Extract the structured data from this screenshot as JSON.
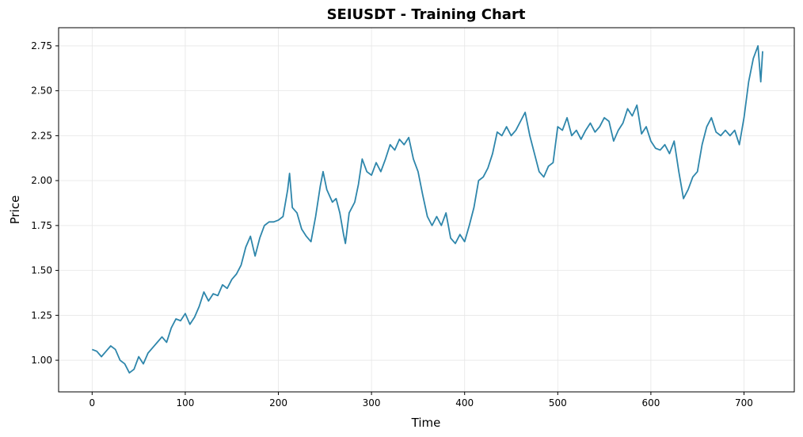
{
  "chart_data": {
    "type": "line",
    "title": "SEIUSDT - Training Chart",
    "xlabel": "Time",
    "ylabel": "Price",
    "color": "#2e86ab",
    "grid": true,
    "xlim": [
      -36,
      754
    ],
    "ylim": [
      0.824,
      2.851
    ],
    "xticks": [
      0,
      100,
      200,
      300,
      400,
      500,
      600,
      700
    ],
    "yticks": [
      {
        "value": 1,
        "label": "1.00"
      },
      1.25,
      {
        "value": 1.5,
        "label": "1.50"
      },
      1.75,
      {
        "value": 2,
        "label": "2.00"
      },
      2.25,
      {
        "value": 2.5,
        "label": "2.50"
      },
      2.75
    ],
    "x": [
      0,
      5,
      10,
      15,
      20,
      25,
      30,
      35,
      40,
      45,
      50,
      55,
      60,
      65,
      70,
      75,
      80,
      85,
      90,
      95,
      100,
      105,
      110,
      115,
      120,
      125,
      130,
      135,
      140,
      145,
      150,
      155,
      160,
      165,
      170,
      175,
      180,
      185,
      190,
      195,
      200,
      205,
      210,
      212,
      215,
      220,
      225,
      230,
      235,
      240,
      245,
      248,
      252,
      258,
      262,
      266,
      270,
      272,
      276,
      282,
      286,
      290,
      295,
      300,
      305,
      310,
      315,
      320,
      325,
      330,
      335,
      340,
      345,
      350,
      355,
      360,
      365,
      370,
      375,
      380,
      385,
      390,
      395,
      400,
      405,
      410,
      415,
      420,
      425,
      430,
      435,
      440,
      445,
      450,
      455,
      460,
      465,
      470,
      475,
      480,
      485,
      490,
      495,
      500,
      505,
      510,
      515,
      520,
      525,
      530,
      535,
      540,
      545,
      550,
      555,
      560,
      565,
      570,
      575,
      580,
      585,
      590,
      595,
      600,
      605,
      610,
      615,
      620,
      625,
      630,
      635,
      640,
      645,
      650,
      655,
      660,
      665,
      670,
      675,
      680,
      685,
      690,
      695,
      700,
      705,
      710,
      715,
      718,
      720
    ],
    "values": [
      1.06,
      1.05,
      1.02,
      1.05,
      1.08,
      1.06,
      1.0,
      0.98,
      0.93,
      0.95,
      1.02,
      0.98,
      1.04,
      1.07,
      1.1,
      1.13,
      1.1,
      1.18,
      1.23,
      1.22,
      1.26,
      1.2,
      1.24,
      1.3,
      1.38,
      1.33,
      1.37,
      1.36,
      1.42,
      1.4,
      1.45,
      1.48,
      1.53,
      1.63,
      1.69,
      1.58,
      1.68,
      1.75,
      1.77,
      1.77,
      1.78,
      1.8,
      1.95,
      2.04,
      1.85,
      1.82,
      1.73,
      1.69,
      1.66,
      1.8,
      1.97,
      2.05,
      1.95,
      1.88,
      1.9,
      1.82,
      1.7,
      1.65,
      1.82,
      1.88,
      1.98,
      2.12,
      2.05,
      2.03,
      2.1,
      2.05,
      2.12,
      2.2,
      2.17,
      2.23,
      2.2,
      2.24,
      2.12,
      2.05,
      1.92,
      1.8,
      1.75,
      1.8,
      1.75,
      1.82,
      1.68,
      1.65,
      1.7,
      1.66,
      1.75,
      1.85,
      2.0,
      2.02,
      2.07,
      2.15,
      2.27,
      2.25,
      2.3,
      2.25,
      2.28,
      2.33,
      2.38,
      2.25,
      2.15,
      2.05,
      2.02,
      2.08,
      2.1,
      2.3,
      2.28,
      2.35,
      2.25,
      2.28,
      2.23,
      2.28,
      2.32,
      2.27,
      2.3,
      2.35,
      2.33,
      2.22,
      2.28,
      2.32,
      2.4,
      2.36,
      2.42,
      2.26,
      2.3,
      2.22,
      2.18,
      2.17,
      2.2,
      2.15,
      2.22,
      2.05,
      1.9,
      1.95,
      2.02,
      2.05,
      2.2,
      2.3,
      2.35,
      2.27,
      2.25,
      2.28,
      2.25,
      2.28,
      2.2,
      2.35,
      2.55,
      2.68,
      2.75,
      2.55,
      2.72
    ]
  }
}
